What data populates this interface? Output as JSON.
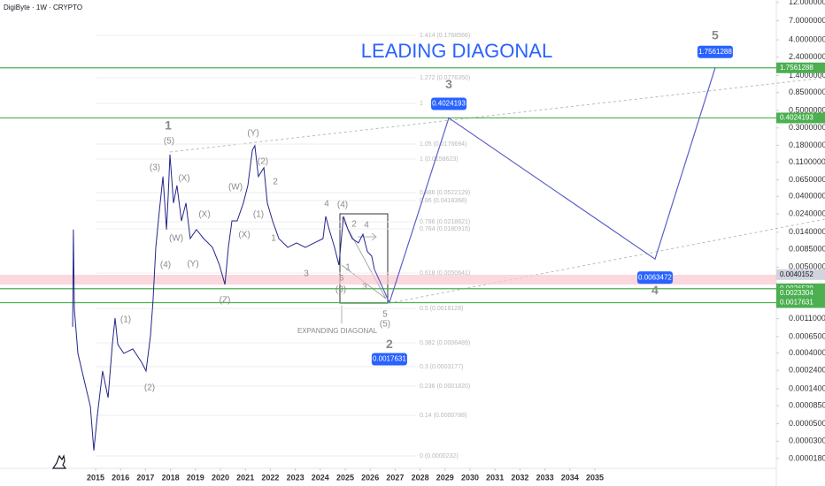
{
  "header": {
    "title": "DigiByte · 1W · CRYPTO"
  },
  "chart_data": {
    "type": "line",
    "title": "LEADING DIAGONAL",
    "annotation": "EXPANDING DIAGONAL",
    "log_scale": true,
    "xlim": [
      2011.17,
      2042.27
    ],
    "ylim": [
      1.35e-05,
      12.9
    ],
    "xticks": [
      2015,
      2016,
      2017,
      2018,
      2019,
      2020,
      2021,
      2022,
      2023,
      2024,
      2025,
      2026,
      2027,
      2028,
      2029,
      2030,
      2031,
      2032,
      2033,
      2034,
      2035
    ],
    "yticks": [
      {
        "value": 12,
        "label": "12.0000000"
      },
      {
        "value": 7,
        "label": "7.0000000"
      },
      {
        "value": 4,
        "label": "4.0000000"
      },
      {
        "value": 2.4,
        "label": "2.4000000"
      },
      {
        "value": 1.4,
        "label": "1.4000000"
      },
      {
        "value": 0.85,
        "label": "0.8500000"
      },
      {
        "value": 0.5,
        "label": "0.5000000"
      },
      {
        "value": 0.3,
        "label": "0.3000000"
      },
      {
        "value": 0.18,
        "label": "0.1800000"
      },
      {
        "value": 0.11,
        "label": "0.1100000"
      },
      {
        "value": 0.065,
        "label": "0.0650000"
      },
      {
        "value": 0.04,
        "label": "0.0400000"
      },
      {
        "value": 0.024,
        "label": "0.0240000"
      },
      {
        "value": 0.014,
        "label": "0.0140000"
      },
      {
        "value": 0.0085,
        "label": "0.0085000"
      },
      {
        "value": 0.005,
        "label": "0.0050000"
      },
      {
        "value": 0.0011,
        "label": "0.0011000"
      },
      {
        "value": 0.00065,
        "label": "0.0006500"
      },
      {
        "value": 0.0004,
        "label": "0.0004000"
      },
      {
        "value": 0.00024,
        "label": "0.0002400"
      },
      {
        "value": 0.00014,
        "label": "0.0001400"
      },
      {
        "value": 8.5e-05,
        "label": "0.0000850"
      },
      {
        "value": 5e-05,
        "label": "0.0000500"
      },
      {
        "value": 3e-05,
        "label": "0.0000300"
      },
      {
        "value": 1.8e-05,
        "label": "0.0000180"
      }
    ],
    "series": [
      {
        "name": "DigiByte",
        "color": "#23268a",
        "x": [
          2014.08,
          2014.11,
          2014.15,
          2014.29,
          2014.54,
          2014.79,
          2014.93,
          2015.07,
          2015.28,
          2015.5,
          2015.67,
          2015.78,
          2015.89,
          2016.13,
          2016.49,
          2016.84,
          2017.02,
          2017.2,
          2017.3,
          2017.41,
          2017.55,
          2017.7,
          2017.84,
          2017.91,
          2017.98,
          2018.12,
          2018.26,
          2018.44,
          2018.62,
          2018.79,
          2019.04,
          2019.33,
          2019.68,
          2019.96,
          2020.18,
          2020.32,
          2020.46,
          2020.67,
          2020.92,
          2021.1,
          2021.28,
          2021.38,
          2021.52,
          2021.74,
          2021.88,
          2022.09,
          2022.34,
          2022.7,
          2023.05,
          2023.4,
          2023.76,
          2024.11,
          2024.22,
          2024.36,
          2024.57,
          2024.75,
          2024.93,
          2025.11,
          2025.28,
          2025.53,
          2025.71,
          2025.89,
          2026.06,
          2026.17
        ],
        "values": [
          0.000865,
          0.0151,
          0.00146,
          0.000397,
          0.000182,
          8.34e-05,
          2.28e-05,
          6.43e-05,
          0.000236,
          0.000108,
          0.000514,
          0.00112,
          0.000514,
          0.000397,
          0.000452,
          0.000306,
          0.000236,
          0.000667,
          0.00188,
          0.00897,
          0.0254,
          0.0718,
          0.0151,
          0.0427,
          0.137,
          0.0329,
          0.0553,
          0.0195,
          0.0329,
          0.0116,
          0.0151,
          0.0116,
          0.00897,
          0.00533,
          0.00301,
          0.00897,
          0.0195,
          0.0195,
          0.0329,
          0.0553,
          0.156,
          0.178,
          0.0718,
          0.0931,
          0.0329,
          0.0195,
          0.0116,
          0.00897,
          0.0102,
          0.00897,
          0.0102,
          0.0116,
          0.0223,
          0.0151,
          0.00897,
          0.00533,
          0.0223,
          0.0151,
          0.0116,
          0.0102,
          0.0132,
          0.00787,
          0.00692,
          0.00469
        ]
      },
      {
        "name": "Projection",
        "color": "#5b5fc7",
        "x": [
          2026.77,
          2029.15,
          2037.41,
          2039.82
        ],
        "values": [
          0.0017631,
          0.4024193,
          0.0063472,
          1.7561288
        ],
        "point_labels": [
          "2",
          "3",
          "4",
          "5"
        ]
      }
    ],
    "horizontal_lines": {
      "color": "#4caf50",
      "values": [
        1.7561288,
        0.4024193,
        0.0026539,
        0.0017631
      ]
    },
    "zone": {
      "color": "#f8c8d0",
      "values": [
        0.003,
        0.004
      ]
    },
    "price_labels": {
      "last": 0.0040152,
      "levels": [
        1.7561288,
        0.4024193,
        0.0026539,
        0.0023304,
        0.0017631
      ]
    },
    "wave_labels": [
      "1",
      "(5)",
      "(3)",
      "(X)",
      "(W)",
      "(4)",
      "(Y)",
      "(X)",
      "(W)",
      "(Y)",
      "(2)",
      "2",
      "(1)",
      "(X)",
      "(Z)",
      "(1)",
      "(2)",
      "4",
      "(4)",
      "2",
      "4",
      "1",
      "1",
      "3",
      "5",
      "(3)",
      "3",
      "5",
      "(5)"
    ],
    "fib_labels": [
      "1.414 (0.1768566)",
      "1.272 (0.0776350)",
      "1",
      "1.05 (0.0176694)",
      "1 (0.0158623)",
      "0.886 (0.0522129)",
      "0.86 (0.0418368)",
      "0.786 (0.0218621)",
      "0.764 (0.0180915)",
      "0.618 (0.0050641)",
      "0.5 (0.0018128)",
      "0.382 (0.0006489)",
      "0.3 (0.0003177)",
      "0.236 (0.0001820)",
      "0.14 (0.0000788)",
      "0 (0.0000232)"
    ]
  }
}
